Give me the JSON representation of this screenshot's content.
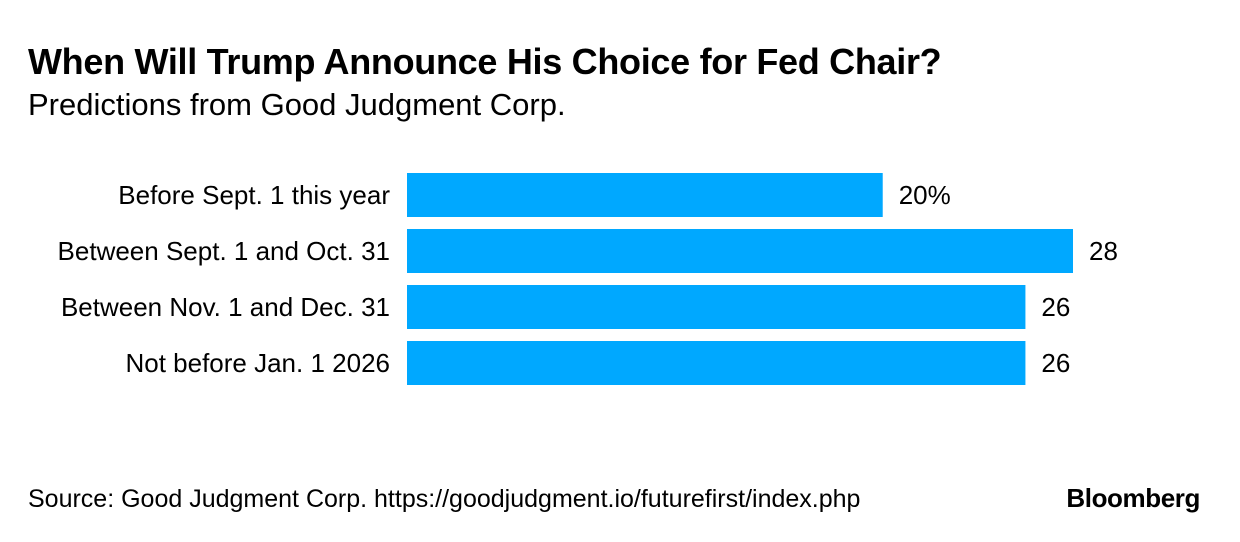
{
  "title": "When Will Trump Announce His Choice for Fed Chair?",
  "subtitle": "Predictions from Good Judgment Corp.",
  "source": "Source: Good Judgment Corp. https://goodjudgment.io/futurefirst/index.php",
  "brand": "Bloomberg",
  "colors": {
    "bar": "#00a8ff"
  },
  "chart_data": {
    "type": "bar",
    "orientation": "horizontal",
    "title": "When Will Trump Announce His Choice for Fed Chair?",
    "subtitle": "Predictions from Good Judgment Corp.",
    "categories": [
      "Before Sept. 1 this year",
      "Between Sept. 1 and Oct. 31",
      "Between Nov. 1 and Dec. 31",
      "Not before Jan. 1 2026"
    ],
    "values": [
      20,
      28,
      26,
      26
    ],
    "value_labels": [
      "20%",
      "28",
      "26",
      "26"
    ],
    "unit": "%",
    "xlim": [
      0,
      28
    ],
    "grid": false,
    "legend": "none"
  }
}
